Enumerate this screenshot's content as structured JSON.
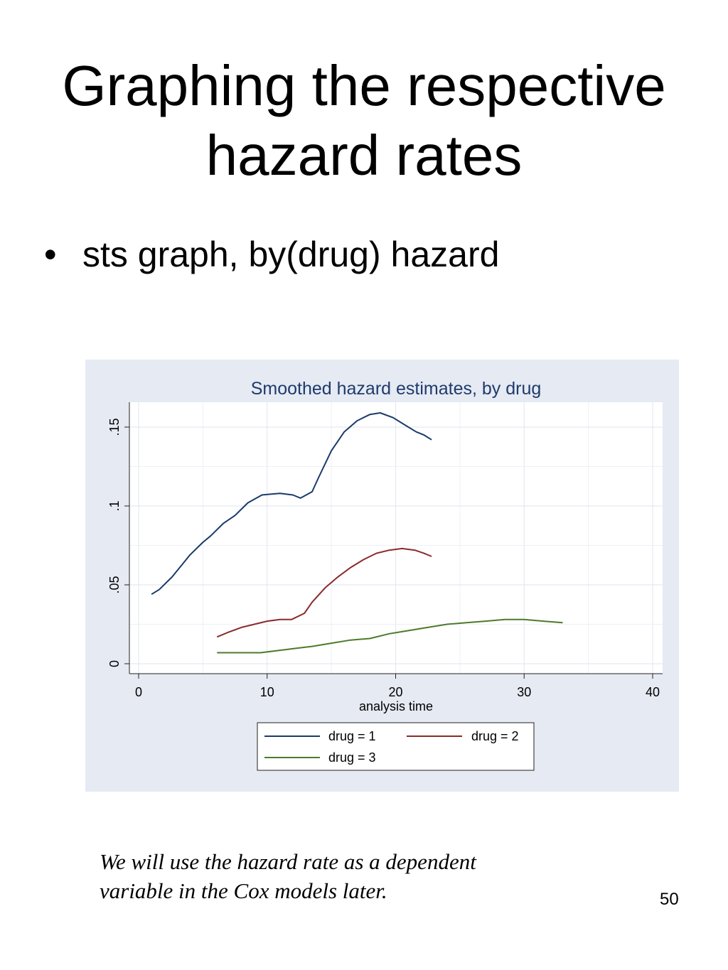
{
  "slide": {
    "title_line1": "Graphing the respective",
    "title_line2": "hazard rates",
    "bullet_marker": "•",
    "bullet_text": "sts graph, by(drug) hazard",
    "note": "We will use the hazard rate as a dependent variable in the Cox models later.",
    "page_number": "50"
  },
  "chart_data": {
    "type": "line",
    "title": "Smoothed hazard estimates, by drug",
    "xlabel": "analysis time",
    "ylabel": "",
    "xlim": [
      0,
      40
    ],
    "ylim": [
      0,
      0.16
    ],
    "x_ticks": [
      0,
      10,
      20,
      30,
      40
    ],
    "x_tick_labels": [
      "0",
      "10",
      "20",
      "30",
      "40"
    ],
    "y_ticks": [
      0,
      0.05,
      0.1,
      0.15
    ],
    "y_tick_labels": [
      "0",
      ".05",
      ".1",
      ".15"
    ],
    "grid": true,
    "legend_position": "bottom",
    "series": [
      {
        "name": "drug = 1",
        "color": "#1a3a6b",
        "points": [
          [
            1,
            0.044
          ],
          [
            1.6,
            0.047
          ],
          [
            2.6,
            0.055
          ],
          [
            4,
            0.069
          ],
          [
            5,
            0.077
          ],
          [
            5.6,
            0.081
          ],
          [
            6.6,
            0.089
          ],
          [
            7.5,
            0.094
          ],
          [
            8.5,
            0.102
          ],
          [
            9.6,
            0.107
          ],
          [
            11,
            0.108
          ],
          [
            12,
            0.107
          ],
          [
            12.6,
            0.105
          ],
          [
            13.5,
            0.109
          ],
          [
            14,
            0.118
          ],
          [
            15,
            0.135
          ],
          [
            16,
            0.147
          ],
          [
            17,
            0.154
          ],
          [
            18,
            0.158
          ],
          [
            18.8,
            0.159
          ],
          [
            19.8,
            0.156
          ],
          [
            20.6,
            0.152
          ],
          [
            21.6,
            0.147
          ],
          [
            22.2,
            0.145
          ],
          [
            22.8,
            0.142
          ]
        ]
      },
      {
        "name": "drug = 2",
        "color": "#8b2a2a",
        "points": [
          [
            6.1,
            0.017
          ],
          [
            7,
            0.02
          ],
          [
            8,
            0.023
          ],
          [
            9,
            0.025
          ],
          [
            10,
            0.027
          ],
          [
            11,
            0.028
          ],
          [
            11.9,
            0.028
          ],
          [
            12.9,
            0.032
          ],
          [
            13.5,
            0.039
          ],
          [
            14.5,
            0.048
          ],
          [
            15.5,
            0.055
          ],
          [
            16.5,
            0.061
          ],
          [
            17.5,
            0.066
          ],
          [
            18.5,
            0.07
          ],
          [
            19.5,
            0.072
          ],
          [
            20.5,
            0.073
          ],
          [
            21.5,
            0.072
          ],
          [
            22.2,
            0.07
          ],
          [
            22.8,
            0.068
          ]
        ]
      },
      {
        "name": "drug = 3",
        "color": "#4d7a2a",
        "points": [
          [
            6.1,
            0.007
          ],
          [
            7,
            0.007
          ],
          [
            8,
            0.007
          ],
          [
            9.5,
            0.007
          ],
          [
            10.5,
            0.008
          ],
          [
            11.5,
            0.009
          ],
          [
            12.5,
            0.01
          ],
          [
            13.5,
            0.011
          ],
          [
            15,
            0.013
          ],
          [
            16.5,
            0.015
          ],
          [
            18,
            0.016
          ],
          [
            19.5,
            0.019
          ],
          [
            21,
            0.021
          ],
          [
            22.5,
            0.023
          ],
          [
            24,
            0.025
          ],
          [
            25.5,
            0.026
          ],
          [
            27,
            0.027
          ],
          [
            28.5,
            0.028
          ],
          [
            30,
            0.028
          ],
          [
            31.5,
            0.027
          ],
          [
            33,
            0.026
          ]
        ]
      }
    ]
  }
}
